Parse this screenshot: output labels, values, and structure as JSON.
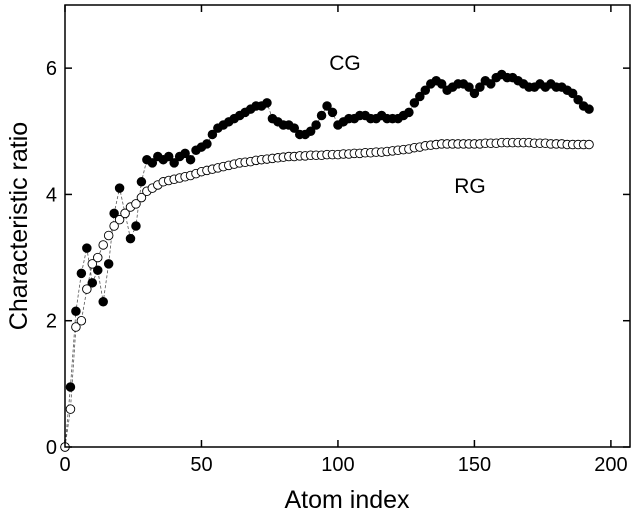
{
  "chart_data": {
    "type": "scatter",
    "x_label": "Atom index",
    "y_label": "Characteristic ratio",
    "annotations": [
      "CG",
      "RG"
    ],
    "xlim": [
      0,
      207
    ],
    "ylim": [
      0,
      7
    ],
    "xticks": [
      0,
      50,
      100,
      150,
      200
    ],
    "yticks": [
      0,
      2,
      4,
      6
    ],
    "x": [
      0,
      2,
      4,
      6,
      8,
      10,
      12,
      14,
      16,
      18,
      20,
      22,
      24,
      26,
      28,
      30,
      32,
      34,
      36,
      38,
      40,
      42,
      44,
      46,
      48,
      50,
      52,
      54,
      56,
      58,
      60,
      62,
      64,
      66,
      68,
      70,
      72,
      74,
      76,
      78,
      80,
      82,
      84,
      86,
      88,
      90,
      92,
      94,
      96,
      98,
      100,
      102,
      104,
      106,
      108,
      110,
      112,
      114,
      116,
      118,
      120,
      122,
      124,
      126,
      128,
      130,
      132,
      134,
      136,
      138,
      140,
      142,
      144,
      146,
      148,
      150,
      152,
      154,
      156,
      158,
      160,
      162,
      164,
      166,
      168,
      170,
      172,
      174,
      176,
      178,
      180,
      182,
      184,
      186,
      188,
      190,
      192
    ],
    "series": [
      {
        "name": "CG",
        "color": "#000000",
        "filled": true,
        "values": [
          0,
          0.95,
          2.15,
          2.75,
          3.15,
          2.6,
          2.8,
          2.3,
          2.9,
          3.7,
          4.1,
          3.7,
          3.3,
          3.5,
          4.2,
          4.55,
          4.5,
          4.6,
          4.55,
          4.6,
          4.5,
          4.6,
          4.65,
          4.55,
          4.7,
          4.75,
          4.8,
          4.95,
          5.05,
          5.1,
          5.15,
          5.2,
          5.25,
          5.3,
          5.35,
          5.4,
          5.4,
          5.45,
          5.2,
          5.15,
          5.1,
          5.1,
          5.05,
          4.95,
          4.95,
          5.0,
          5.1,
          5.25,
          5.4,
          5.3,
          5.1,
          5.15,
          5.2,
          5.2,
          5.25,
          5.25,
          5.2,
          5.2,
          5.25,
          5.2,
          5.2,
          5.2,
          5.25,
          5.3,
          5.45,
          5.55,
          5.65,
          5.75,
          5.8,
          5.75,
          5.65,
          5.7,
          5.75,
          5.75,
          5.7,
          5.6,
          5.7,
          5.8,
          5.75,
          5.85,
          5.9,
          5.85,
          5.85,
          5.8,
          5.75,
          5.7,
          5.7,
          5.75,
          5.7,
          5.75,
          5.7,
          5.7,
          5.65,
          5.6,
          5.5,
          5.4,
          5.35
        ]
      },
      {
        "name": "RG",
        "color": "#000000",
        "filled": false,
        "values": [
          0,
          0.6,
          1.9,
          2.0,
          2.5,
          2.9,
          3.0,
          3.2,
          3.35,
          3.5,
          3.6,
          3.7,
          3.8,
          3.85,
          3.95,
          4.05,
          4.1,
          4.15,
          4.2,
          4.22,
          4.24,
          4.26,
          4.28,
          4.3,
          4.33,
          4.36,
          4.38,
          4.4,
          4.42,
          4.44,
          4.46,
          4.48,
          4.5,
          4.51,
          4.52,
          4.54,
          4.55,
          4.56,
          4.57,
          4.58,
          4.59,
          4.6,
          4.6,
          4.61,
          4.61,
          4.62,
          4.62,
          4.62,
          4.63,
          4.63,
          4.63,
          4.64,
          4.64,
          4.65,
          4.65,
          4.66,
          4.66,
          4.67,
          4.67,
          4.68,
          4.69,
          4.7,
          4.71,
          4.72,
          4.74,
          4.75,
          4.77,
          4.78,
          4.79,
          4.8,
          4.8,
          4.8,
          4.8,
          4.8,
          4.8,
          4.8,
          4.8,
          4.81,
          4.81,
          4.81,
          4.82,
          4.82,
          4.82,
          4.82,
          4.82,
          4.82,
          4.81,
          4.81,
          4.81,
          4.8,
          4.8,
          4.8,
          4.79,
          4.79,
          4.79,
          4.79,
          4.79
        ]
      }
    ]
  }
}
